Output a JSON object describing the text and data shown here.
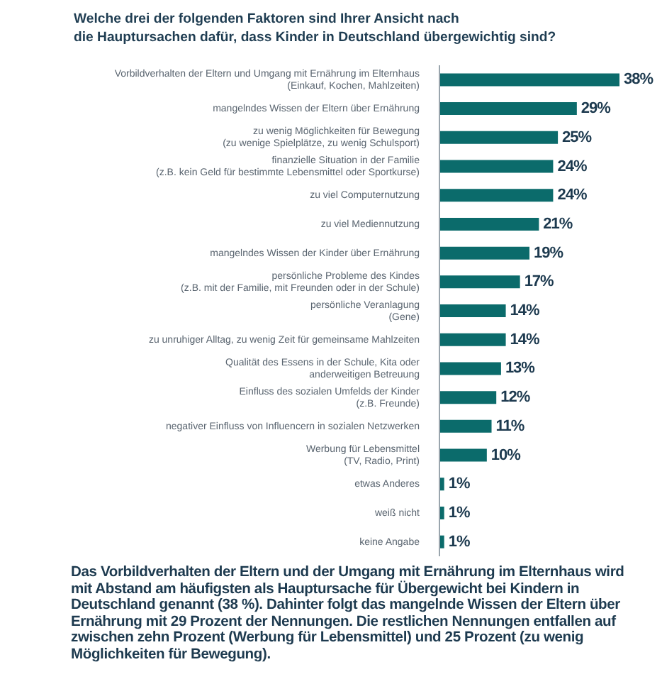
{
  "chart_data": {
    "type": "bar",
    "orientation": "horizontal",
    "title": "Welche drei der folgenden Faktoren sind Ihrer Ansicht nach\ndie Hauptursachen dafür, dass Kinder in Deutschland übergewichtig sind?",
    "categories": [
      "Vorbildverhalten der Eltern und Umgang mit Ernährung im Elternhaus\n(Einkauf, Kochen, Mahlzeiten)",
      "mangelndes Wissen der Eltern über Ernährung",
      "zu wenig Möglichkeiten für Bewegung\n(zu wenige Spielplätze, zu wenig Schulsport)",
      "finanzielle Situation in der Familie\n(z.B. kein Geld für bestimmte Lebensmittel oder Sportkurse)",
      "zu viel Computernutzung",
      "zu viel Mediennutzung",
      "mangelndes Wissen der Kinder über Ernährung",
      "persönliche Probleme des Kindes\n(z.B. mit der Familie, mit Freunden oder in der Schule)",
      "persönliche Veranlagung\n(Gene)",
      "zu unruhiger Alltag, zu wenig Zeit für gemeinsame Mahlzeiten",
      "Qualität des Essens in der Schule, Kita oder\nanderweitigen Betreuung",
      "Einfluss des sozialen Umfelds der Kinder\n(z.B. Freunde)",
      "negativer Einfluss von Influencern in sozialen Netzwerken",
      "Werbung für Lebensmittel\n(TV, Radio, Print)",
      "etwas Anderes",
      "weiß nicht",
      "keine Angabe"
    ],
    "values": [
      38,
      29,
      25,
      24,
      24,
      21,
      19,
      17,
      14,
      14,
      13,
      12,
      11,
      10,
      1,
      1,
      1
    ],
    "value_labels": [
      "38%",
      "29%",
      "25%",
      "24%",
      "24%",
      "21%",
      "19%",
      "17%",
      "14%",
      "14%",
      "13%",
      "12%",
      "11%",
      "10%",
      "1%",
      "1%",
      "1%"
    ],
    "color": "#0b6b6b",
    "annotations": [
      "Das Vorbildverhalten der Eltern und der Umgang mit Ernährung im Elternhaus wird mit Abstand am häufigsten als Hauptursache für Übergewicht bei Kindern in Deutschland genannt (38 %). Dahinter folgt das mangelnde Wissen der Eltern über Ernährung mit 29 Prozent der Nennungen. Die restlichen Nennungen entfallen auf zwischen zehn Prozent (Werbung für Lebensmittel) und 25 Prozent (zu wenig Möglichkeiten für Bewegung)."
    ]
  }
}
